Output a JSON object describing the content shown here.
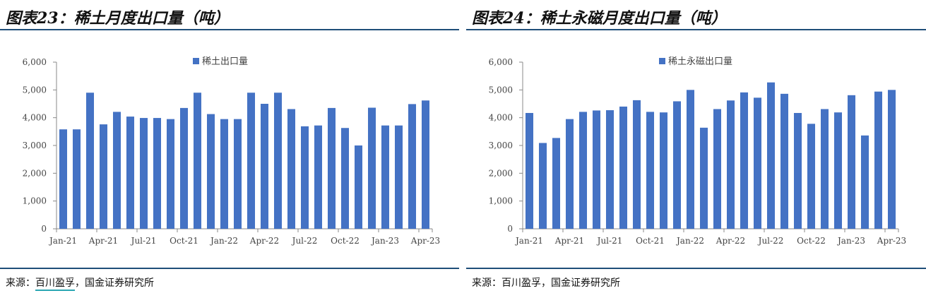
{
  "panels": [
    {
      "title": "图表23：稀土月度出口量（吨）",
      "source_prefix": "来源：",
      "source_highlight": "百川盈孚",
      "source_rest": "，国金证券研究所"
    },
    {
      "title": "图表24：稀土永磁月度出口量（吨）",
      "source_prefix": "来源：",
      "source_highlight": "百川盈孚",
      "source_rest": "，国金证券研究所"
    }
  ],
  "colors": {
    "bar": "#4472c4",
    "rule": "#1f4e79",
    "axis": "#888888",
    "source_underline": "#2aa6b3"
  },
  "chart_data": [
    {
      "type": "bar",
      "title": "",
      "legend_position": "top-center",
      "grid": false,
      "ylim": [
        0,
        6000
      ],
      "yticks": [
        0,
        1000,
        2000,
        3000,
        4000,
        5000,
        6000
      ],
      "ytick_labels": [
        "0",
        "1,000",
        "2,000",
        "3,000",
        "4,000",
        "5,000",
        "6,000"
      ],
      "x_tick_labels": [
        "Jan-21",
        "Apr-21",
        "Jul-21",
        "Oct-21",
        "Jan-22",
        "Apr-22",
        "Jul-22",
        "Oct-22",
        "Jan-23",
        "Apr-23"
      ],
      "categories": [
        "Jan-21",
        "Feb-21",
        "Mar-21",
        "Apr-21",
        "May-21",
        "Jun-21",
        "Jul-21",
        "Aug-21",
        "Sep-21",
        "Oct-21",
        "Nov-21",
        "Dec-21",
        "Jan-22",
        "Feb-22",
        "Mar-22",
        "Apr-22",
        "May-22",
        "Jun-22",
        "Jul-22",
        "Aug-22",
        "Sep-22",
        "Oct-22",
        "Nov-22",
        "Dec-22",
        "Jan-23",
        "Feb-23",
        "Mar-23",
        "Apr-23"
      ],
      "series": [
        {
          "name": "稀土出口量",
          "values": [
            3580,
            3580,
            4900,
            3760,
            4210,
            4040,
            3990,
            3990,
            3950,
            4350,
            4900,
            4130,
            3950,
            3950,
            4900,
            4500,
            4900,
            4310,
            3690,
            3720,
            4350,
            3630,
            3000,
            4360,
            3720,
            3720,
            4490,
            4620
          ]
        }
      ]
    },
    {
      "type": "bar",
      "title": "",
      "legend_position": "top-center",
      "grid": false,
      "ylim": [
        0,
        6000
      ],
      "yticks": [
        0,
        1000,
        2000,
        3000,
        4000,
        5000,
        6000
      ],
      "ytick_labels": [
        "0",
        "1,000",
        "2,000",
        "3,000",
        "4,000",
        "5,000",
        "6,000"
      ],
      "x_tick_labels": [
        "Jan-21",
        "Apr-21",
        "Jul-21",
        "Oct-21",
        "Jan-22",
        "Apr-22",
        "Jul-22",
        "Oct-22",
        "Jan-23",
        "Apr-23"
      ],
      "categories": [
        "Jan-21",
        "Feb-21",
        "Mar-21",
        "Apr-21",
        "May-21",
        "Jun-21",
        "Jul-21",
        "Aug-21",
        "Sep-21",
        "Oct-21",
        "Nov-21",
        "Dec-21",
        "Jan-22",
        "Feb-22",
        "Mar-22",
        "Apr-22",
        "May-22",
        "Jun-22",
        "Jul-22",
        "Aug-22",
        "Sep-22",
        "Oct-22",
        "Nov-22",
        "Dec-22",
        "Jan-23",
        "Feb-23",
        "Mar-23",
        "Apr-23"
      ],
      "series": [
        {
          "name": "稀土永磁出口量",
          "values": [
            4170,
            3090,
            3270,
            3950,
            4210,
            4260,
            4270,
            4400,
            4630,
            4210,
            4190,
            4590,
            5000,
            3640,
            4310,
            4620,
            4910,
            4720,
            5270,
            4860,
            4170,
            3780,
            4310,
            4190,
            4810,
            3360,
            4940,
            5000
          ]
        }
      ]
    }
  ]
}
